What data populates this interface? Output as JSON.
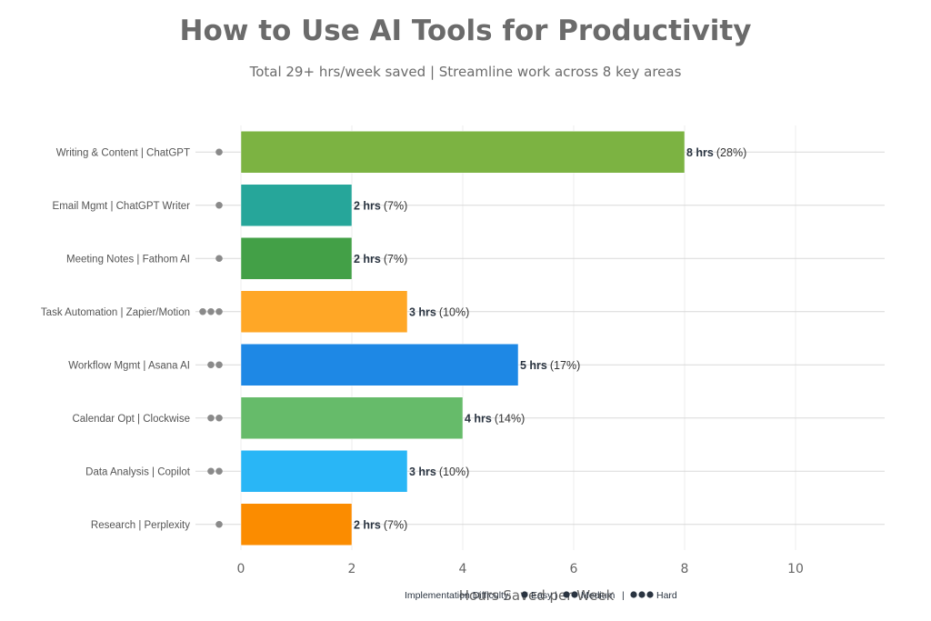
{
  "title": "How to Use AI Tools for Productivity",
  "subtitle": "Total 29+ hrs/week saved | Streamline work across 8 key areas",
  "chart_data": {
    "type": "bar",
    "orientation": "horizontal",
    "title": "How to Use AI Tools for Productivity",
    "subtitle": "Total 29+ hrs/week saved | Streamline work across 8 key areas",
    "xlabel": "Hours Saved per Week",
    "ylabel": "",
    "xlim": [
      0,
      11.6
    ],
    "x_ticks": [
      0,
      2,
      4,
      6,
      8,
      10
    ],
    "grid": true,
    "categories": [
      "Writing & Content | ChatGPT",
      "Email Mgmt | ChatGPT Writer",
      "Meeting Notes | Fathom AI",
      "Task Automation | Zapier/Motion",
      "Workflow Mgmt | Asana AI",
      "Calendar Opt | Clockwise",
      "Data Analysis | Copilot",
      "Research | Perplexity"
    ],
    "values": [
      8,
      2,
      2,
      3,
      5,
      4,
      3,
      2
    ],
    "value_labels": [
      "8 hrs",
      "2 hrs",
      "2 hrs",
      "3 hrs",
      "5 hrs",
      "4 hrs",
      "3 hrs",
      "2 hrs"
    ],
    "percent_labels": [
      "(28%)",
      "(7%)",
      "(7%)",
      "(10%)",
      "(17%)",
      "(14%)",
      "(10%)",
      "(7%)"
    ],
    "difficulty": [
      1,
      1,
      1,
      3,
      2,
      2,
      2,
      1
    ],
    "colors": [
      "#7cb342",
      "#26a69a",
      "#43a047",
      "#ffa726",
      "#1e88e5",
      "#66bb6a",
      "#29b6f6",
      "#fb8c00"
    ],
    "difficulty_dot_color": "#8a8a8a",
    "legend": {
      "title": "Implementation Difficulty:",
      "placement": "bottom-center",
      "items": [
        "Easy",
        "Medium",
        "Hard"
      ],
      "separator": "|"
    }
  }
}
